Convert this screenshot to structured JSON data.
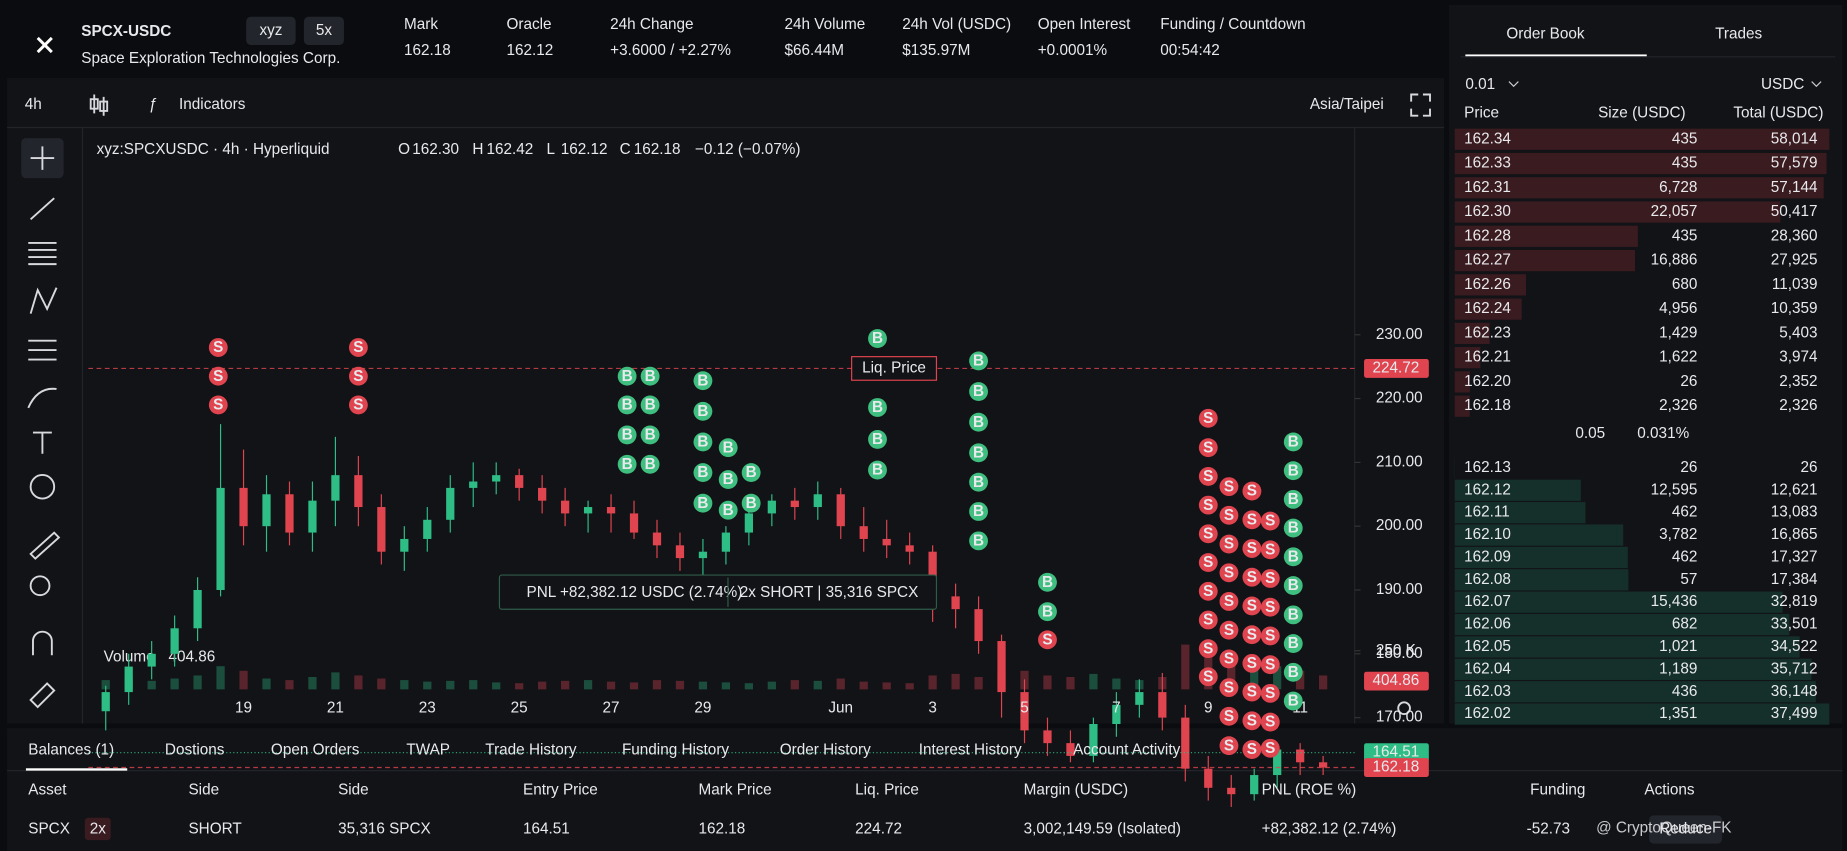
{
  "header": {
    "symbol": "SPCX-USDC",
    "tags": [
      "xyz",
      "5x"
    ],
    "name": "Space Exploration Technologies Corp.",
    "stats": [
      {
        "label": "Mark",
        "value": "162.18"
      },
      {
        "label": "Oracle",
        "value": "162.12"
      },
      {
        "label": "24h Change",
        "value": "+3.6000 / +2.27%",
        "color": "#3fbf7f"
      },
      {
        "label": "24h Volume",
        "value": "$66.44M"
      },
      {
        "label": "24h Vol (USDC)",
        "value": "$135.97M"
      },
      {
        "label": "Open Interest",
        "value": "+0.0001%",
        "color": "#3fbf7f"
      },
      {
        "label": "Funding / Countdown",
        "value": "00:54:42"
      }
    ]
  },
  "toolbar": {
    "interval": "4h",
    "indicators": "Indicators",
    "timezone": "Asia/Taipei"
  },
  "chart_data": {
    "type": "candlestick",
    "title": "xyz:SPCXUSDC · 4h · Hyperliquid",
    "legend": [
      {
        "label": "O",
        "value": "162.30"
      },
      {
        "label": "H",
        "value": "162.42"
      },
      {
        "label": "L",
        "value": "162.12"
      },
      {
        "label": "C",
        "value": "162.18"
      }
    ],
    "change": "−0.12 (−0.07%)",
    "categories": [
      null,
      null,
      null,
      null,
      null,
      null,
      "19",
      null,
      null,
      null,
      "21",
      null,
      null,
      null,
      "23",
      null,
      null,
      null,
      "25",
      null,
      null,
      null,
      "27",
      null,
      null,
      null,
      "29",
      null,
      null,
      null,
      null,
      null,
      "Jun",
      null,
      null,
      null,
      "3",
      null,
      null,
      null,
      "5",
      null,
      null,
      null,
      "7",
      null,
      null,
      null,
      "9",
      null,
      null,
      null,
      "11",
      null
    ],
    "open": [
      171,
      174,
      178,
      180,
      184,
      190,
      206,
      200,
      205,
      199,
      204,
      208,
      203,
      196,
      198,
      201,
      206,
      207,
      208,
      206,
      204,
      202,
      203,
      202,
      199,
      197,
      195,
      196,
      199,
      202,
      204,
      203,
      205,
      200,
      198,
      197,
      196,
      189,
      187,
      182,
      174,
      168,
      166,
      164,
      169,
      172,
      174,
      170,
      162,
      159,
      158,
      161,
      165,
      163
    ],
    "high": [
      175,
      180,
      182,
      186,
      192,
      216,
      212,
      208,
      207,
      207,
      214,
      211,
      205,
      200,
      203,
      208,
      210,
      210,
      209,
      208,
      206,
      204,
      205,
      204,
      201,
      199,
      198,
      200,
      203,
      205,
      206,
      207,
      206,
      203,
      201,
      199,
      197,
      191,
      189,
      183,
      176,
      170,
      168,
      170,
      174,
      176,
      177,
      172,
      164,
      161,
      162,
      166,
      166,
      164
    ],
    "low": [
      168,
      172,
      176,
      178,
      182,
      189,
      197,
      196,
      197,
      196,
      200,
      200,
      194,
      193,
      196,
      199,
      203,
      205,
      204,
      202,
      200,
      199,
      199,
      198,
      195,
      193,
      192,
      194,
      197,
      200,
      201,
      201,
      198,
      196,
      195,
      194,
      185,
      184,
      180,
      170,
      166,
      164,
      163,
      163,
      167,
      170,
      168,
      160,
      157,
      156,
      157,
      159,
      161,
      161
    ],
    "close": [
      174,
      178,
      180,
      184,
      190,
      206,
      200,
      205,
      199,
      204,
      208,
      203,
      196,
      198,
      201,
      206,
      207,
      208,
      206,
      204,
      202,
      203,
      202,
      199,
      197,
      195,
      196,
      199,
      202,
      204,
      203,
      205,
      200,
      198,
      197,
      196,
      189,
      187,
      182,
      174,
      168,
      166,
      164,
      169,
      172,
      174,
      170,
      162,
      159,
      158,
      161,
      165,
      163,
      162.18
    ],
    "up_color": "#2ebd85",
    "down_color": "#e0444f",
    "ylim": [
      155.6,
      235.9
    ],
    "yticks": [
      {
        "value": 170,
        "label": "170.00"
      },
      {
        "value": 180,
        "label": "180.00"
      },
      {
        "value": 190,
        "label": "190.00"
      },
      {
        "value": 200,
        "label": "200.00"
      },
      {
        "value": 210,
        "label": "210.00"
      },
      {
        "value": 220,
        "label": "220.00"
      },
      {
        "value": 230,
        "label": "230.00"
      }
    ],
    "volume": {
      "label": "Volume",
      "value": 404.86,
      "values": [
        60,
        80,
        55,
        70,
        90,
        150,
        120,
        70,
        60,
        80,
        110,
        90,
        70,
        60,
        50,
        55,
        60,
        45,
        40,
        50,
        55,
        60,
        50,
        45,
        60,
        55,
        50,
        45,
        40,
        50,
        60,
        55,
        70,
        50,
        45,
        40,
        90,
        100,
        80,
        110,
        120,
        90,
        80,
        100,
        70,
        60,
        80,
        290,
        310,
        230,
        180,
        150,
        120,
        90
      ],
      "ylim": [
        0,
        450
      ],
      "yticks": [
        {
          "value": 250,
          "label": "250 K"
        }
      ]
    },
    "lines": [
      {
        "name": "Liq. Price",
        "value": 224.72,
        "color": "#e0444f"
      },
      {
        "value": 164.51,
        "color": "#2ebd85"
      },
      {
        "value": 162.18,
        "color": "#e0444f"
      }
    ],
    "position": {
      "pnl": "PNL +82,382.12 USDC (2.74%)",
      "side": "2x SHORT | 35,316 SPCX"
    },
    "markers": [
      {
        "label": "S",
        "x": 4.9,
        "values": [
          228,
          223.5,
          219
        ]
      },
      {
        "label": "S",
        "x": 11.0,
        "values": [
          228,
          223.5,
          219
        ]
      },
      {
        "label": "B",
        "x": 22.7,
        "values": [
          223.5,
          219,
          214.3,
          209.7
        ]
      },
      {
        "label": "B",
        "x": 23.7,
        "values": [
          223.5,
          219,
          214.3,
          209.7
        ]
      },
      {
        "label": "B",
        "x": 26.0,
        "values": [
          222.8,
          218,
          213.2,
          208.4,
          203.6
        ]
      },
      {
        "label": "B",
        "x": 27.1,
        "values": [
          212.3,
          207.3,
          202.5
        ]
      },
      {
        "label": "B",
        "x": 28.1,
        "values": [
          208.4,
          203.6
        ]
      },
      {
        "label": "B",
        "x": 33.6,
        "values": [
          229.4,
          218.6,
          213.6,
          208.8
        ]
      },
      {
        "label": "B",
        "x": 38.0,
        "values": [
          225.9,
          221.1,
          216.3,
          211.5,
          206.9,
          202.3,
          197.7
        ]
      },
      {
        "label": "B",
        "x": 41.0,
        "values": [
          191.2,
          186.6
        ]
      },
      {
        "label": "S",
        "x": 41.0,
        "values": [
          182.2
        ]
      },
      {
        "label": "S",
        "x": 48.0,
        "values": [
          216.9,
          212.3,
          207.8,
          203.3,
          198.8,
          194.3,
          189.8,
          185.3,
          180.8,
          176.4
        ]
      },
      {
        "label": "S",
        "x": 48.9,
        "values": [
          206.2,
          201.7,
          197.2,
          192.7,
          188.2,
          183.7,
          179.2,
          174.7,
          170.2,
          165.6
        ]
      },
      {
        "label": "S",
        "x": 49.9,
        "values": [
          205.5,
          201,
          196.5,
          192,
          187.5,
          183,
          178.5,
          174,
          169.5,
          165
        ]
      },
      {
        "label": "S",
        "x": 50.7,
        "values": [
          200.8,
          196.3,
          191.8,
          187.3,
          182.8,
          178.3,
          173.8,
          169.3,
          165.2
        ]
      },
      {
        "label": "B",
        "x": 51.7,
        "values": [
          213.2,
          208.7,
          204.2,
          199.7,
          195.2,
          190.7,
          186.1,
          181.6,
          177.1,
          172.6
        ]
      }
    ]
  },
  "order_book": {
    "tabs": [
      "Order Book",
      "Trades"
    ],
    "tick": "0.01",
    "unit": "USDC",
    "columns": [
      "Price",
      "Size (USDC)",
      "Total (USDC)"
    ],
    "asks": [
      [
        "162.34",
        "435",
        "58,014"
      ],
      [
        "162.33",
        "435",
        "57,579"
      ],
      [
        "162.31",
        "6,728",
        "57,144"
      ],
      [
        "162.30",
        "22,057",
        "50,417"
      ],
      [
        "162.28",
        "435",
        "28,360"
      ],
      [
        "162.27",
        "16,886",
        "27,925"
      ],
      [
        "162.26",
        "680",
        "11,039"
      ],
      [
        "162.24",
        "4,956",
        "10,359"
      ],
      [
        "162.23",
        "1,429",
        "5,403"
      ],
      [
        "162.21",
        "1,622",
        "3,974"
      ],
      [
        "162.20",
        "26",
        "2,352"
      ],
      [
        "162.18",
        "2,326",
        "2,326"
      ]
    ],
    "spread": [
      "0.05",
      "0.031%"
    ],
    "bids": [
      [
        "162.13",
        "26",
        "26"
      ],
      [
        "162.12",
        "12,595",
        "12,621"
      ],
      [
        "162.11",
        "462",
        "13,083"
      ],
      [
        "162.10",
        "3,782",
        "16,865"
      ],
      [
        "162.09",
        "462",
        "17,327"
      ],
      [
        "162.08",
        "57",
        "17,384"
      ],
      [
        "162.07",
        "15,436",
        "32,819"
      ],
      [
        "162.06",
        "682",
        "33,501"
      ],
      [
        "162.05",
        "1,021",
        "34,522"
      ],
      [
        "162.04",
        "1,189",
        "35,712"
      ],
      [
        "162.03",
        "436",
        "36,148"
      ],
      [
        "162.02",
        "1,351",
        "37,499"
      ]
    ]
  },
  "bottom": {
    "tabs": [
      "Balances (1)",
      "Dostions",
      "Open Orders",
      "TWAP",
      "Trade History",
      "Funding History",
      "Order History",
      "Interest History",
      "Account Activity"
    ],
    "columns": [
      "Asset",
      "Side",
      "Side",
      "Entry Price",
      "Mark Price",
      "Liq. Price",
      "Margin (USDC)",
      "PNL (ROE %)",
      "Funding",
      "Actions"
    ],
    "row": {
      "asset": "SPCX",
      "leverage": "2x",
      "side": "SHORT",
      "size": "35,316 SPCX",
      "entry": "164.51",
      "mark": "162.18",
      "liq": "224.72",
      "margin": "3,002,149.59 (Isolated)",
      "pnl": "+82,382.12 (2.74%)",
      "funding": "-52.73",
      "action": "Reduce"
    }
  },
  "watermark": "@ CryptoQueen-FK"
}
